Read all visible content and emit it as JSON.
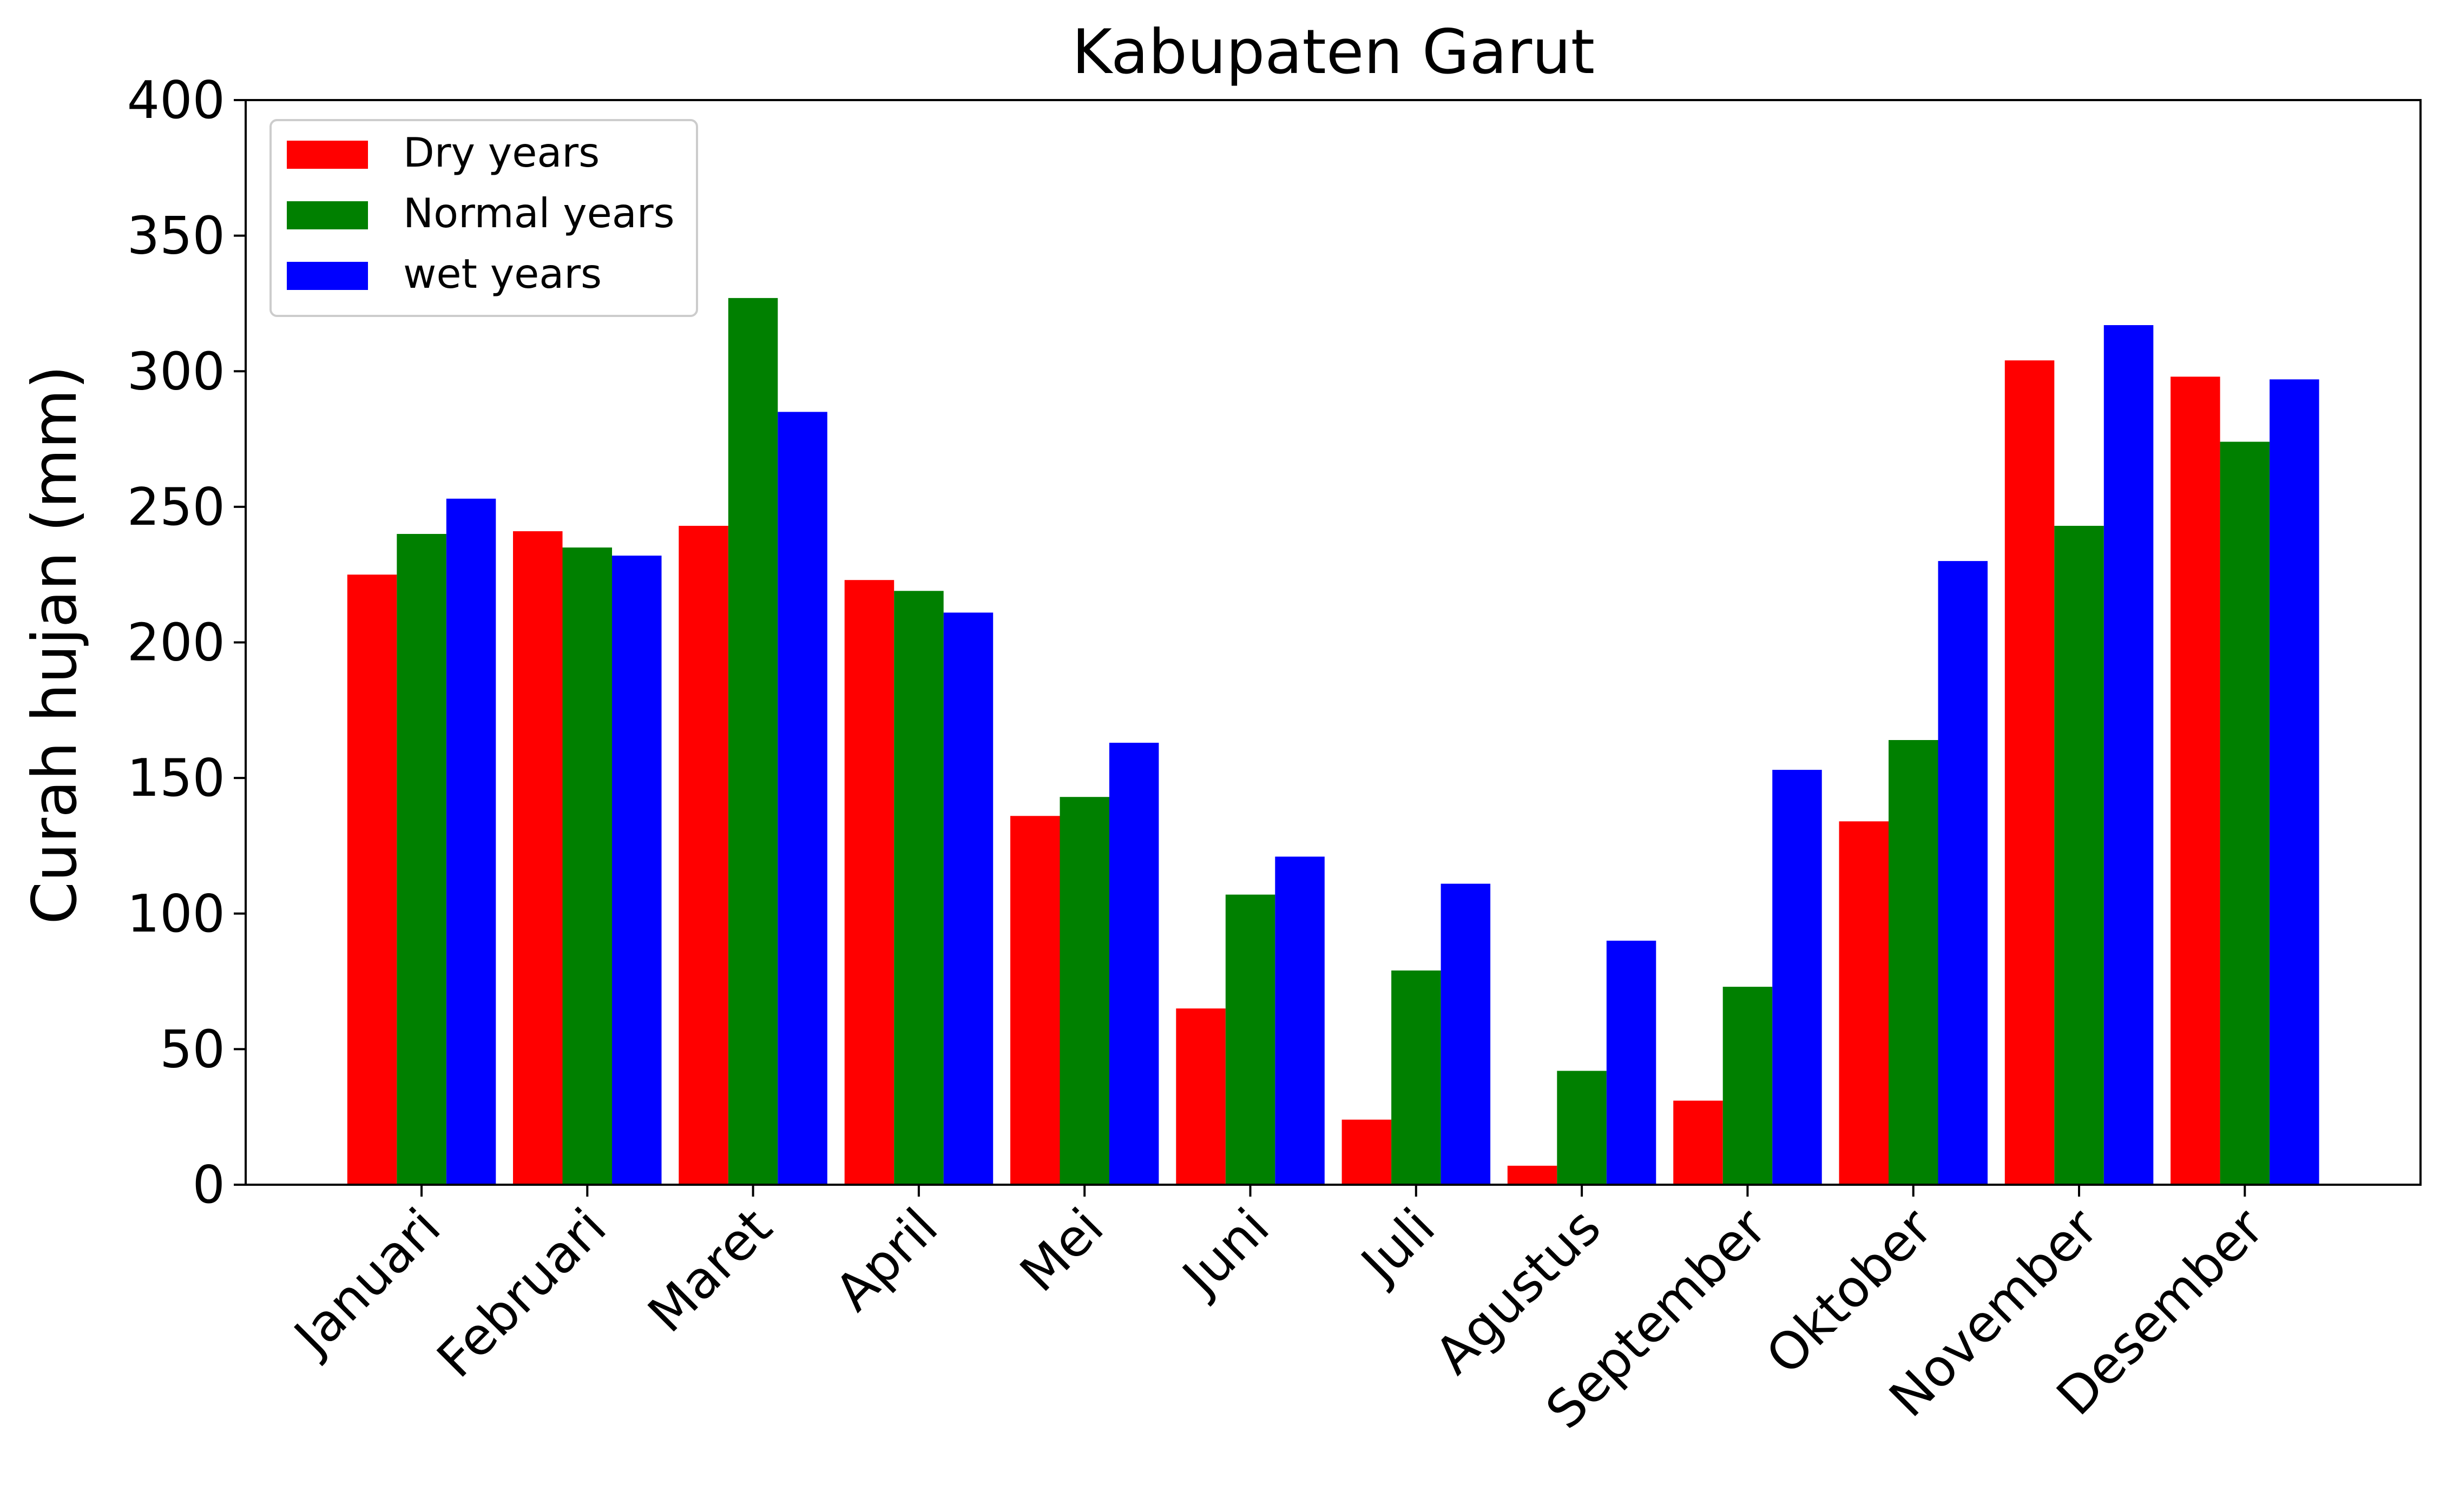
{
  "chart_data": {
    "type": "bar",
    "title": "Kabupaten Garut",
    "xlabel": "",
    "ylabel": "Curah hujan (mm)",
    "ylim": [
      0,
      400
    ],
    "yticks": [
      "0",
      "50",
      "100",
      "150",
      "200",
      "250",
      "300",
      "350",
      "400"
    ],
    "categories": [
      "Januari",
      "Februari",
      "Maret",
      "April",
      "Mei",
      "Juni",
      "Juli",
      "Agustus",
      "September",
      "Oktober",
      "November",
      "Desember"
    ],
    "series": [
      {
        "name": "Dry years",
        "color": "#ff0000",
        "values": [
          225,
          241,
          243,
          223,
          136,
          65,
          24,
          7,
          31,
          134,
          304,
          298
        ]
      },
      {
        "name": "Normal years",
        "color": "#008000",
        "values": [
          240,
          235,
          327,
          219,
          143,
          107,
          79,
          42,
          73,
          164,
          243,
          274
        ]
      },
      {
        "name": "wet years",
        "color": "#0000ff",
        "values": [
          253,
          232,
          285,
          211,
          163,
          121,
          111,
          90,
          153,
          230,
          317,
          297
        ]
      }
    ],
    "legend": "top-left",
    "grid": false
  }
}
